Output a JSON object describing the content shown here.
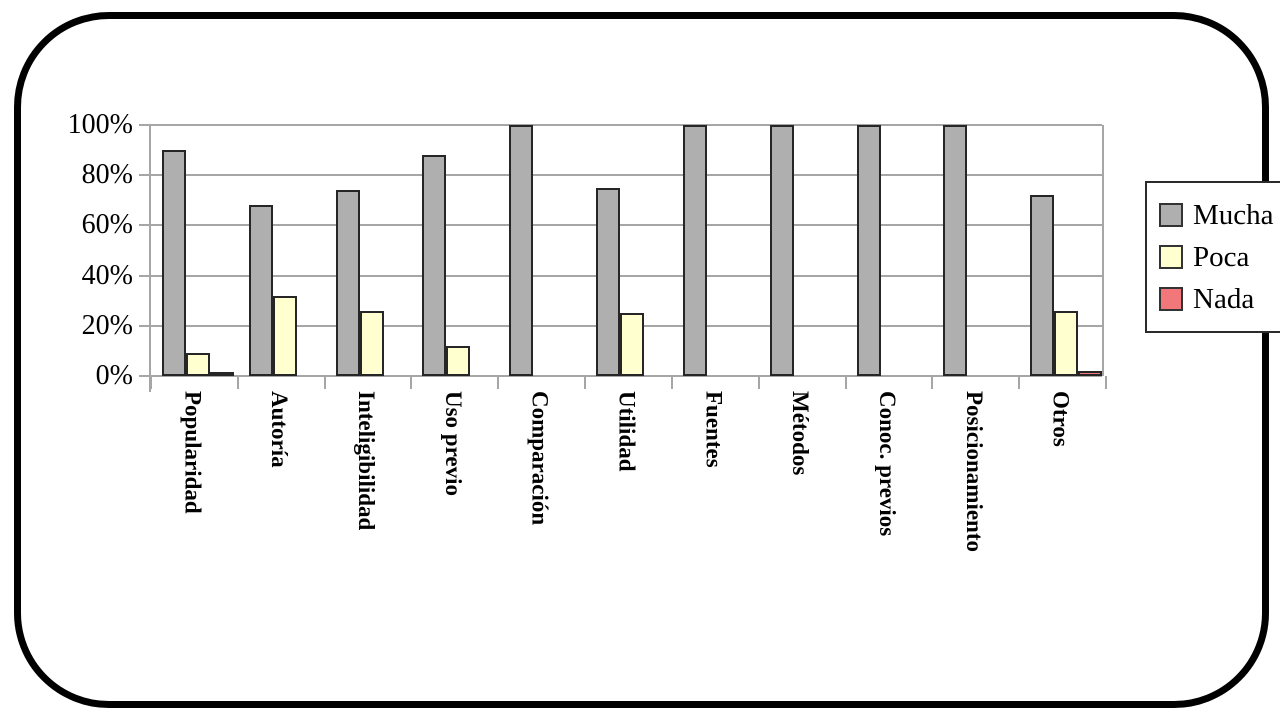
{
  "chart_data": {
    "type": "bar",
    "title": "",
    "xlabel": "",
    "ylabel": "",
    "categories": [
      "Popularidad",
      "Autoría",
      "Inteligibilidad",
      "Uso previo",
      "Comparación",
      "Utilidad",
      "Fuentes",
      "Métodos",
      "Conoc. previos",
      "Posicionamiento",
      "Otros"
    ],
    "series": [
      {
        "name": "Mucha",
        "color": "#afafaf",
        "values": [
          90,
          68,
          74,
          88,
          100,
          75,
          100,
          100,
          100,
          100,
          72
        ]
      },
      {
        "name": "Poca",
        "color": "#ffffcf",
        "values": [
          9,
          32,
          26,
          12,
          0,
          25,
          0,
          0,
          0,
          0,
          26
        ]
      },
      {
        "name": "Nada",
        "color": "#f1777b",
        "values": [
          1,
          0,
          0,
          0,
          0,
          0,
          0,
          0,
          0,
          0,
          2
        ]
      }
    ],
    "y_axis": {
      "ticks": [
        "100%",
        "80%",
        "60%",
        "40%",
        "20%",
        "0%"
      ],
      "min": 0,
      "max": 100
    },
    "grid": true,
    "legend_position": "right",
    "colors": {
      "gridline": "#a6a6a6",
      "bar_border": "#262626",
      "frame": "#000000"
    }
  }
}
